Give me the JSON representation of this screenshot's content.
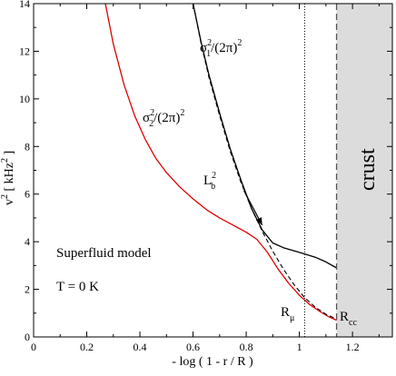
{
  "chart_data": {
    "type": "line",
    "title": "",
    "xlabel": "- log ( 1 - r / R )",
    "ylabel": "v² [ kHz² ]",
    "xlim": [
      0,
      1.35
    ],
    "ylim": [
      0,
      14
    ],
    "x_ticks": [
      0,
      0.2,
      0.4,
      0.6,
      0.8,
      1,
      1.2
    ],
    "x_tick_labels": [
      "0",
      "0.2",
      "0.4",
      "0.6",
      "0.8",
      "1",
      "1.2"
    ],
    "y_ticks": [
      0,
      2,
      4,
      6,
      8,
      10,
      12,
      14
    ],
    "y_tick_labels": [
      "0",
      "2",
      "4",
      "6",
      "8",
      "10",
      "12",
      "14"
    ],
    "grid": false,
    "series": [
      {
        "name": "σ₁²/(2π)²",
        "color": "#000000",
        "dash": "solid",
        "x": [
          0.6,
          0.63,
          0.66,
          0.7,
          0.74,
          0.78,
          0.82,
          0.86,
          0.9,
          0.94,
          1.0,
          1.06,
          1.1,
          1.14
        ],
        "y": [
          14,
          12.4,
          11.0,
          9.4,
          7.9,
          6.6,
          5.4,
          4.5,
          3.95,
          3.75,
          3.55,
          3.35,
          3.15,
          2.9
        ]
      },
      {
        "name": "σ₂²/(2π)²",
        "color": "#e00000",
        "dash": "solid",
        "x": [
          0.27,
          0.3,
          0.34,
          0.38,
          0.42,
          0.46,
          0.5,
          0.55,
          0.6,
          0.65,
          0.7,
          0.75,
          0.8,
          0.84,
          0.88,
          0.92,
          0.96,
          1.0,
          1.04,
          1.08,
          1.11,
          1.14
        ],
        "y": [
          14,
          12.3,
          10.6,
          9.3,
          8.3,
          7.5,
          6.9,
          6.3,
          5.8,
          5.35,
          5.0,
          4.7,
          4.4,
          4.1,
          3.55,
          2.85,
          2.25,
          1.75,
          1.35,
          1.05,
          0.85,
          0.7
        ]
      },
      {
        "name": "",
        "color": "#000000",
        "dash": "dashed",
        "x": [
          0.6,
          0.63,
          0.66,
          0.7,
          0.74,
          0.78,
          0.82,
          0.86,
          0.9,
          0.94,
          0.98,
          1.02,
          1.06,
          1.1,
          1.14
        ],
        "y": [
          14,
          12.35,
          10.9,
          9.3,
          7.8,
          6.5,
          5.4,
          4.45,
          3.6,
          2.85,
          2.2,
          1.65,
          1.25,
          0.95,
          0.75
        ]
      }
    ],
    "vertical_lines": [
      {
        "x": 1.02,
        "style": "dotted",
        "label": "Rμ"
      },
      {
        "x": 1.14,
        "style": "dashed",
        "label": "Rcc"
      }
    ],
    "shaded_region": {
      "x_from": 1.14,
      "x_to": 1.35,
      "color": "#dcdcdc",
      "label": "crust"
    },
    "annotations": [
      {
        "text": "σ₁²/(2π)²",
        "x": 0.75,
        "y": 12.8
      },
      {
        "text": "σ₂²/(2π)²",
        "x": 0.52,
        "y": 9.4
      },
      {
        "text": "L_b²",
        "x": 0.73,
        "y": 6.3,
        "arrow_to": [
          0.86,
          4.7
        ]
      },
      {
        "text": "Superfluid model",
        "x": 0.1,
        "y": 3.6
      },
      {
        "text": "T = 0 K",
        "x": 0.1,
        "y": 2.2
      }
    ]
  },
  "labels": {
    "sigma1_base": "σ",
    "sigma1_sub": "1",
    "sigma1_sup": "2",
    "sigma1_rest": "/(2π)",
    "sigma1_rest_sup": "2",
    "sigma2_base": "σ",
    "sigma2_sub": "2",
    "sigma2_sup": "2",
    "sigma2_rest": "/(2π)",
    "sigma2_rest_sup": "2",
    "lb_base": "L",
    "lb_sub": "b",
    "lb_sup": "2",
    "superfluid": "Superfluid model",
    "temperature": "T = 0 K",
    "rmu_base": "R",
    "rmu_sub": "μ",
    "rcc_base": "R",
    "rcc_sub": "cc",
    "crust": "crust",
    "ylabel_base": "v",
    "ylabel_sup": "2",
    "ylabel_unit": " [ kHz",
    "ylabel_unit_sup": "2",
    "ylabel_close": " ]",
    "xlabel": "- log ( 1 - r / R )"
  }
}
